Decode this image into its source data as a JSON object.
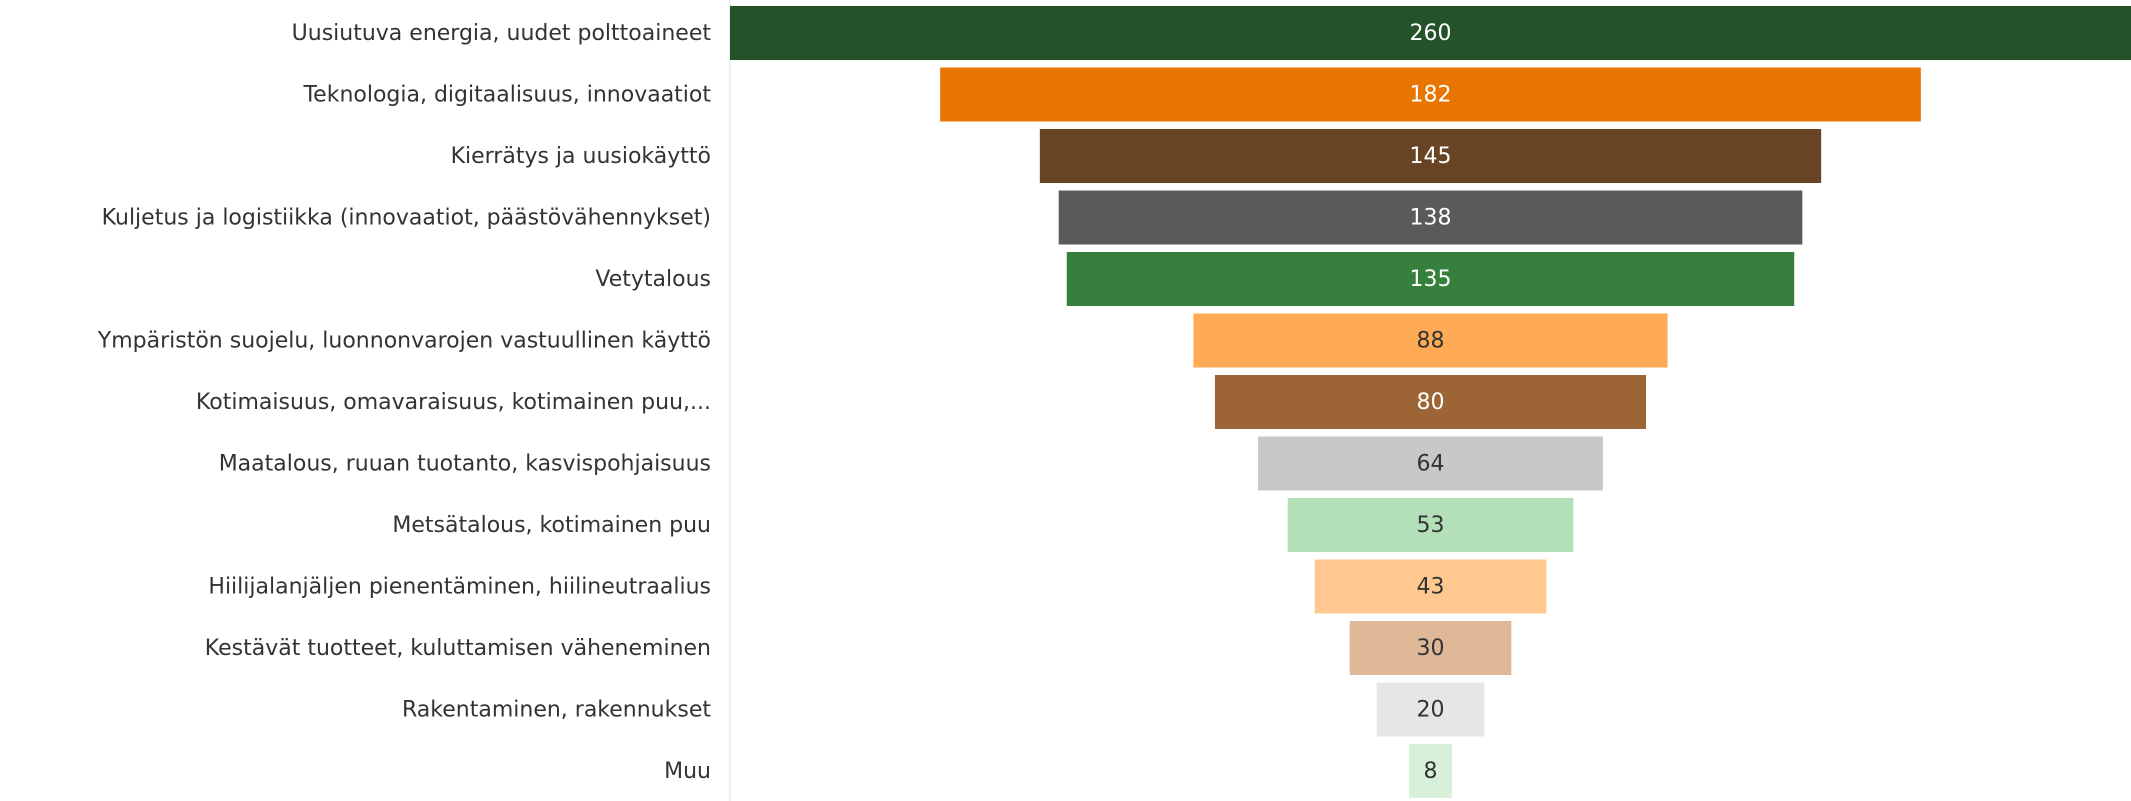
{
  "chart_data": {
    "type": "funnel",
    "categories": [
      "Uusiutuva energia, uudet polttoaineet",
      "Teknologia, digitaalisuus, innovaatiot",
      "Kierrätys ja uusiokäyttö",
      "Kuljetus ja logistiikka (innovaatiot, päästövähennykset)",
      "Vetytalous",
      "Ympäristön suojelu, luonnonvarojen vastuullinen käyttö",
      "Kotimaisuus, omavaraisuus, kotimainen puu,...",
      "Maatalous, ruuan tuotanto, kasvispohjaisuus",
      "Metsätalous, kotimainen puu",
      "Hiilijalanjäljen pienentäminen, hiilineutraalius",
      "Kestävät tuotteet, kuluttamisen väheneminen",
      "Rakentaminen, rakennukset",
      "Muu"
    ],
    "values": [
      260,
      182,
      145,
      138,
      135,
      88,
      80,
      64,
      53,
      43,
      30,
      20,
      8
    ],
    "colors": [
      "#24532a",
      "#e87502",
      "#694424",
      "#5a5a5a",
      "#367f3c",
      "#ffaa55",
      "#9d6535",
      "#c8c8c8",
      "#b3e0b8",
      "#ffc890",
      "#dfb898",
      "#e6e6e6",
      "#d8f0d9"
    ]
  }
}
